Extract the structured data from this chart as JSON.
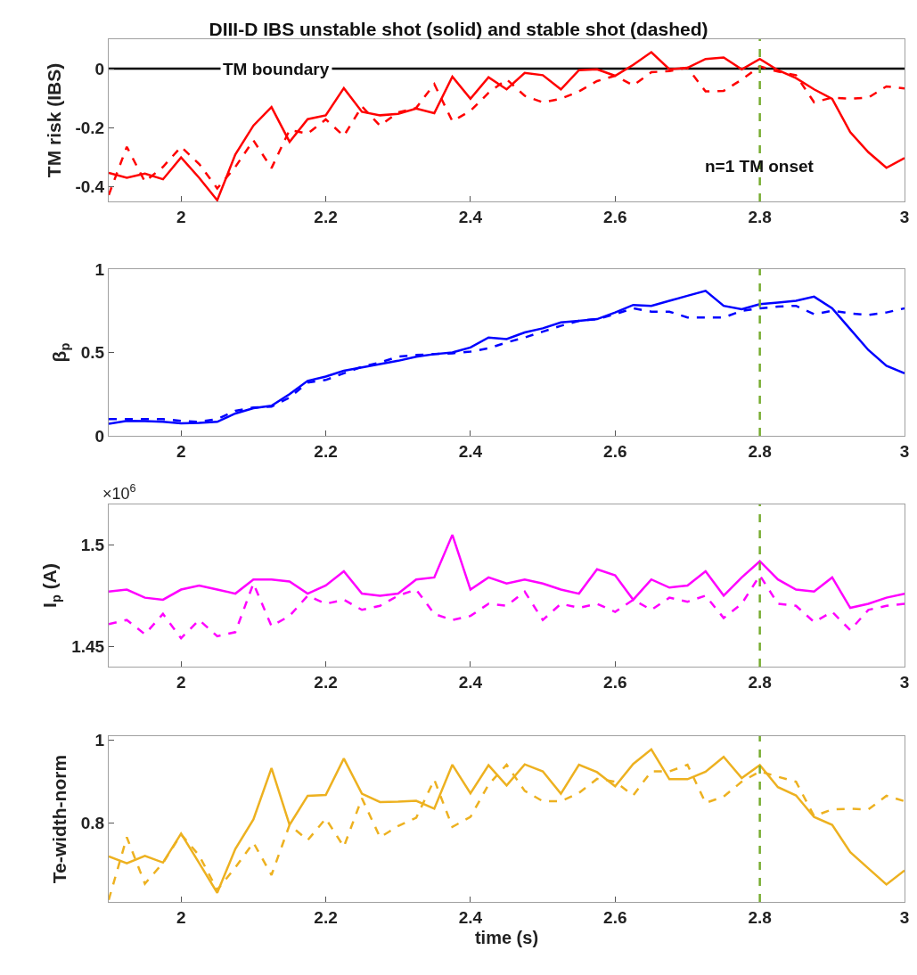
{
  "chart_data": [
    {
      "type": "line",
      "title": "DIII-D IBS unstable shot (solid) and stable shot (dashed)",
      "ylabel": "TM risk (IBS)",
      "xlim": [
        1.9,
        3
      ],
      "xticks": [
        2,
        2.2,
        2.4,
        2.6,
        2.8,
        3
      ],
      "ylim": [
        -0.45,
        0.1
      ],
      "yticks": [
        -0.4,
        -0.2,
        0
      ],
      "x": [
        1.9,
        1.925,
        1.95,
        1.975,
        2,
        2.025,
        2.05,
        2.075,
        2.1,
        2.125,
        2.15,
        2.175,
        2.2,
        2.225,
        2.25,
        2.275,
        2.3,
        2.325,
        2.35,
        2.375,
        2.4,
        2.425,
        2.45,
        2.475,
        2.5,
        2.525,
        2.55,
        2.575,
        2.6,
        2.625,
        2.65,
        2.675,
        2.7,
        2.725,
        2.75,
        2.775,
        2.8,
        2.825,
        2.85,
        2.875,
        2.9,
        2.925,
        2.95,
        2.975,
        3
      ],
      "series": [
        {
          "color": "#ff0000",
          "line_style": "solid",
          "values": [
            -0.353,
            -0.37,
            -0.356,
            -0.375,
            -0.301,
            -0.37,
            -0.446,
            -0.291,
            -0.193,
            -0.13,
            -0.248,
            -0.171,
            -0.158,
            -0.066,
            -0.146,
            -0.158,
            -0.153,
            -0.135,
            -0.151,
            -0.027,
            -0.102,
            -0.029,
            -0.07,
            -0.014,
            -0.022,
            -0.07,
            -0.005,
            -0.002,
            -0.024,
            0.013,
            0.056,
            -0.002,
            0.003,
            0.033,
            0.038,
            -0.002,
            0.033,
            -0.005,
            -0.032,
            -0.07,
            -0.102,
            -0.215,
            -0.283,
            -0.336,
            -0.303
          ]
        },
        {
          "color": "#ff0000",
          "line_style": "dashed",
          "values": [
            -0.428,
            -0.265,
            -0.383,
            -0.333,
            -0.265,
            -0.323,
            -0.406,
            -0.333,
            -0.243,
            -0.337,
            -0.208,
            -0.22,
            -0.172,
            -0.228,
            -0.128,
            -0.193,
            -0.148,
            -0.133,
            -0.052,
            -0.178,
            -0.143,
            -0.082,
            -0.036,
            -0.092,
            -0.114,
            -0.102,
            -0.077,
            -0.042,
            -0.024,
            -0.057,
            -0.012,
            -0.008,
            0.003,
            -0.077,
            -0.075,
            -0.037,
            0.008,
            -0.01,
            -0.022,
            -0.114,
            -0.098,
            -0.102,
            -0.098,
            -0.06,
            -0.067
          ]
        }
      ],
      "ref_lines": [
        {
          "axis": "y",
          "value": 0,
          "label": "TM boundary",
          "color": "#000000",
          "line_style": "solid"
        },
        {
          "axis": "x",
          "value": 2.8,
          "color": "#77ac30",
          "line_style": "dashed"
        }
      ],
      "annotations": [
        {
          "text": "n=1 TM onset",
          "x": 2.8,
          "y": -0.33
        }
      ]
    },
    {
      "type": "line",
      "ylabel": "β$_{p}$",
      "xlim": [
        1.9,
        3
      ],
      "xticks": [
        2,
        2.2,
        2.4,
        2.6,
        2.8,
        3
      ],
      "ylim": [
        0,
        1
      ],
      "yticks": [
        0,
        0.5,
        1
      ],
      "x": [
        1.9,
        1.925,
        1.95,
        1.975,
        2,
        2.025,
        2.05,
        2.075,
        2.1,
        2.125,
        2.15,
        2.175,
        2.2,
        2.225,
        2.25,
        2.275,
        2.3,
        2.325,
        2.35,
        2.375,
        2.4,
        2.425,
        2.45,
        2.475,
        2.5,
        2.525,
        2.55,
        2.575,
        2.6,
        2.625,
        2.65,
        2.675,
        2.7,
        2.725,
        2.75,
        2.775,
        2.8,
        2.825,
        2.85,
        2.875,
        2.9,
        2.925,
        2.95,
        2.975,
        3
      ],
      "series": [
        {
          "color": "#0000ff",
          "line_style": "solid",
          "values": [
            0.072,
            0.09,
            0.088,
            0.084,
            0.075,
            0.078,
            0.084,
            0.134,
            0.166,
            0.18,
            0.25,
            0.33,
            0.356,
            0.39,
            0.41,
            0.43,
            0.45,
            0.475,
            0.49,
            0.5,
            0.53,
            0.59,
            0.58,
            0.62,
            0.645,
            0.68,
            0.69,
            0.7,
            0.74,
            0.785,
            0.78,
            0.81,
            0.84,
            0.87,
            0.78,
            0.76,
            0.79,
            0.8,
            0.81,
            0.835,
            0.765,
            0.64,
            0.515,
            0.42,
            0.375
          ]
        },
        {
          "color": "#0000ff",
          "line_style": "dashed",
          "values": [
            0.1,
            0.1,
            0.1,
            0.1,
            0.09,
            0.084,
            0.1,
            0.15,
            0.17,
            0.175,
            0.23,
            0.32,
            0.335,
            0.375,
            0.415,
            0.44,
            0.475,
            0.485,
            0.49,
            0.495,
            0.505,
            0.525,
            0.56,
            0.59,
            0.625,
            0.66,
            0.69,
            0.7,
            0.73,
            0.765,
            0.745,
            0.745,
            0.71,
            0.71,
            0.71,
            0.75,
            0.765,
            0.775,
            0.78,
            0.73,
            0.75,
            0.735,
            0.725,
            0.74,
            0.765
          ]
        }
      ],
      "ref_lines": [
        {
          "axis": "x",
          "value": 2.8,
          "color": "#77ac30",
          "line_style": "dashed"
        }
      ]
    },
    {
      "type": "line",
      "ylabel": "I$_{p}$ (A)",
      "annotations": [
        "×10$^{6}$"
      ],
      "xlim": [
        1.9,
        3
      ],
      "xticks": [
        2,
        2.2,
        2.4,
        2.6,
        2.8,
        3
      ],
      "ylim": [
        1.44,
        1.52
      ],
      "yticks": [
        1.45,
        1.5
      ],
      "x": [
        1.9,
        1.925,
        1.95,
        1.975,
        2,
        2.025,
        2.05,
        2.075,
        2.1,
        2.125,
        2.15,
        2.175,
        2.2,
        2.225,
        2.25,
        2.275,
        2.3,
        2.325,
        2.35,
        2.375,
        2.4,
        2.425,
        2.45,
        2.475,
        2.5,
        2.525,
        2.55,
        2.575,
        2.6,
        2.625,
        2.65,
        2.675,
        2.7,
        2.725,
        2.75,
        2.775,
        2.8,
        2.825,
        2.85,
        2.875,
        2.9,
        2.925,
        2.95,
        2.975,
        3
      ],
      "series": [
        {
          "color": "#ff00ff",
          "line_style": "solid",
          "values": [
            1.477,
            1.478,
            1.474,
            1.473,
            1.478,
            1.48,
            1.478,
            1.476,
            1.483,
            1.483,
            1.482,
            1.476,
            1.48,
            1.487,
            1.476,
            1.475,
            1.476,
            1.483,
            1.484,
            1.505,
            1.478,
            1.484,
            1.481,
            1.483,
            1.481,
            1.478,
            1.476,
            1.488,
            1.485,
            1.473,
            1.483,
            1.479,
            1.48,
            1.487,
            1.475,
            1.484,
            1.492,
            1.483,
            1.478,
            1.477,
            1.484,
            1.469,
            1.471,
            1.474,
            1.476
          ]
        },
        {
          "color": "#ff00ff",
          "line_style": "dashed",
          "values": [
            1.461,
            1.463,
            1.456,
            1.466,
            1.454,
            1.463,
            1.455,
            1.457,
            1.481,
            1.46,
            1.465,
            1.475,
            1.471,
            1.473,
            1.468,
            1.47,
            1.475,
            1.478,
            1.466,
            1.463,
            1.465,
            1.471,
            1.47,
            1.477,
            1.463,
            1.471,
            1.469,
            1.471,
            1.467,
            1.473,
            1.468,
            1.474,
            1.472,
            1.475,
            1.464,
            1.471,
            1.485,
            1.471,
            1.47,
            1.462,
            1.467,
            1.458,
            1.468,
            1.47,
            1.471
          ]
        }
      ],
      "ref_lines": [
        {
          "axis": "x",
          "value": 2.8,
          "color": "#77ac30",
          "line_style": "dashed"
        }
      ]
    },
    {
      "type": "line",
      "ylabel": "Te-width-norm",
      "xlabel": "time (s)",
      "xlim": [
        1.9,
        3
      ],
      "xticks": [
        2,
        2.2,
        2.4,
        2.6,
        2.8,
        3
      ],
      "ylim": [
        0.61,
        1.01
      ],
      "yticks": [
        0.8,
        1
      ],
      "x": [
        1.9,
        1.925,
        1.95,
        1.975,
        2,
        2.025,
        2.05,
        2.075,
        2.1,
        2.125,
        2.15,
        2.175,
        2.2,
        2.225,
        2.25,
        2.275,
        2.3,
        2.325,
        2.35,
        2.375,
        2.4,
        2.425,
        2.45,
        2.475,
        2.5,
        2.525,
        2.55,
        2.575,
        2.6,
        2.625,
        2.65,
        2.675,
        2.7,
        2.725,
        2.75,
        2.775,
        2.8,
        2.825,
        2.85,
        2.875,
        2.9,
        2.925,
        2.95,
        2.975,
        3
      ],
      "series": [
        {
          "color": "#edb120",
          "line_style": "solid",
          "values": [
            0.72,
            0.703,
            0.721,
            0.705,
            0.775,
            0.704,
            0.632,
            0.738,
            0.809,
            0.933,
            0.796,
            0.866,
            0.868,
            0.956,
            0.871,
            0.851,
            0.852,
            0.854,
            0.835,
            0.941,
            0.872,
            0.94,
            0.891,
            0.942,
            0.925,
            0.871,
            0.941,
            0.923,
            0.889,
            0.943,
            0.978,
            0.906,
            0.906,
            0.924,
            0.96,
            0.909,
            0.94,
            0.887,
            0.867,
            0.815,
            0.796,
            0.73,
            0.691,
            0.652,
            0.686
          ]
        },
        {
          "color": "#edb120",
          "line_style": "dashed",
          "values": [
            0.615,
            0.766,
            0.654,
            0.704,
            0.773,
            0.722,
            0.639,
            0.693,
            0.753,
            0.675,
            0.796,
            0.759,
            0.811,
            0.743,
            0.86,
            0.766,
            0.793,
            0.813,
            0.905,
            0.791,
            0.815,
            0.893,
            0.941,
            0.878,
            0.853,
            0.853,
            0.873,
            0.907,
            0.9,
            0.867,
            0.925,
            0.925,
            0.941,
            0.849,
            0.864,
            0.9,
            0.925,
            0.912,
            0.9,
            0.817,
            0.833,
            0.835,
            0.833,
            0.866,
            0.853
          ]
        }
      ],
      "ref_lines": [
        {
          "axis": "x",
          "value": 2.8,
          "color": "#77ac30",
          "line_style": "dashed"
        }
      ]
    }
  ]
}
